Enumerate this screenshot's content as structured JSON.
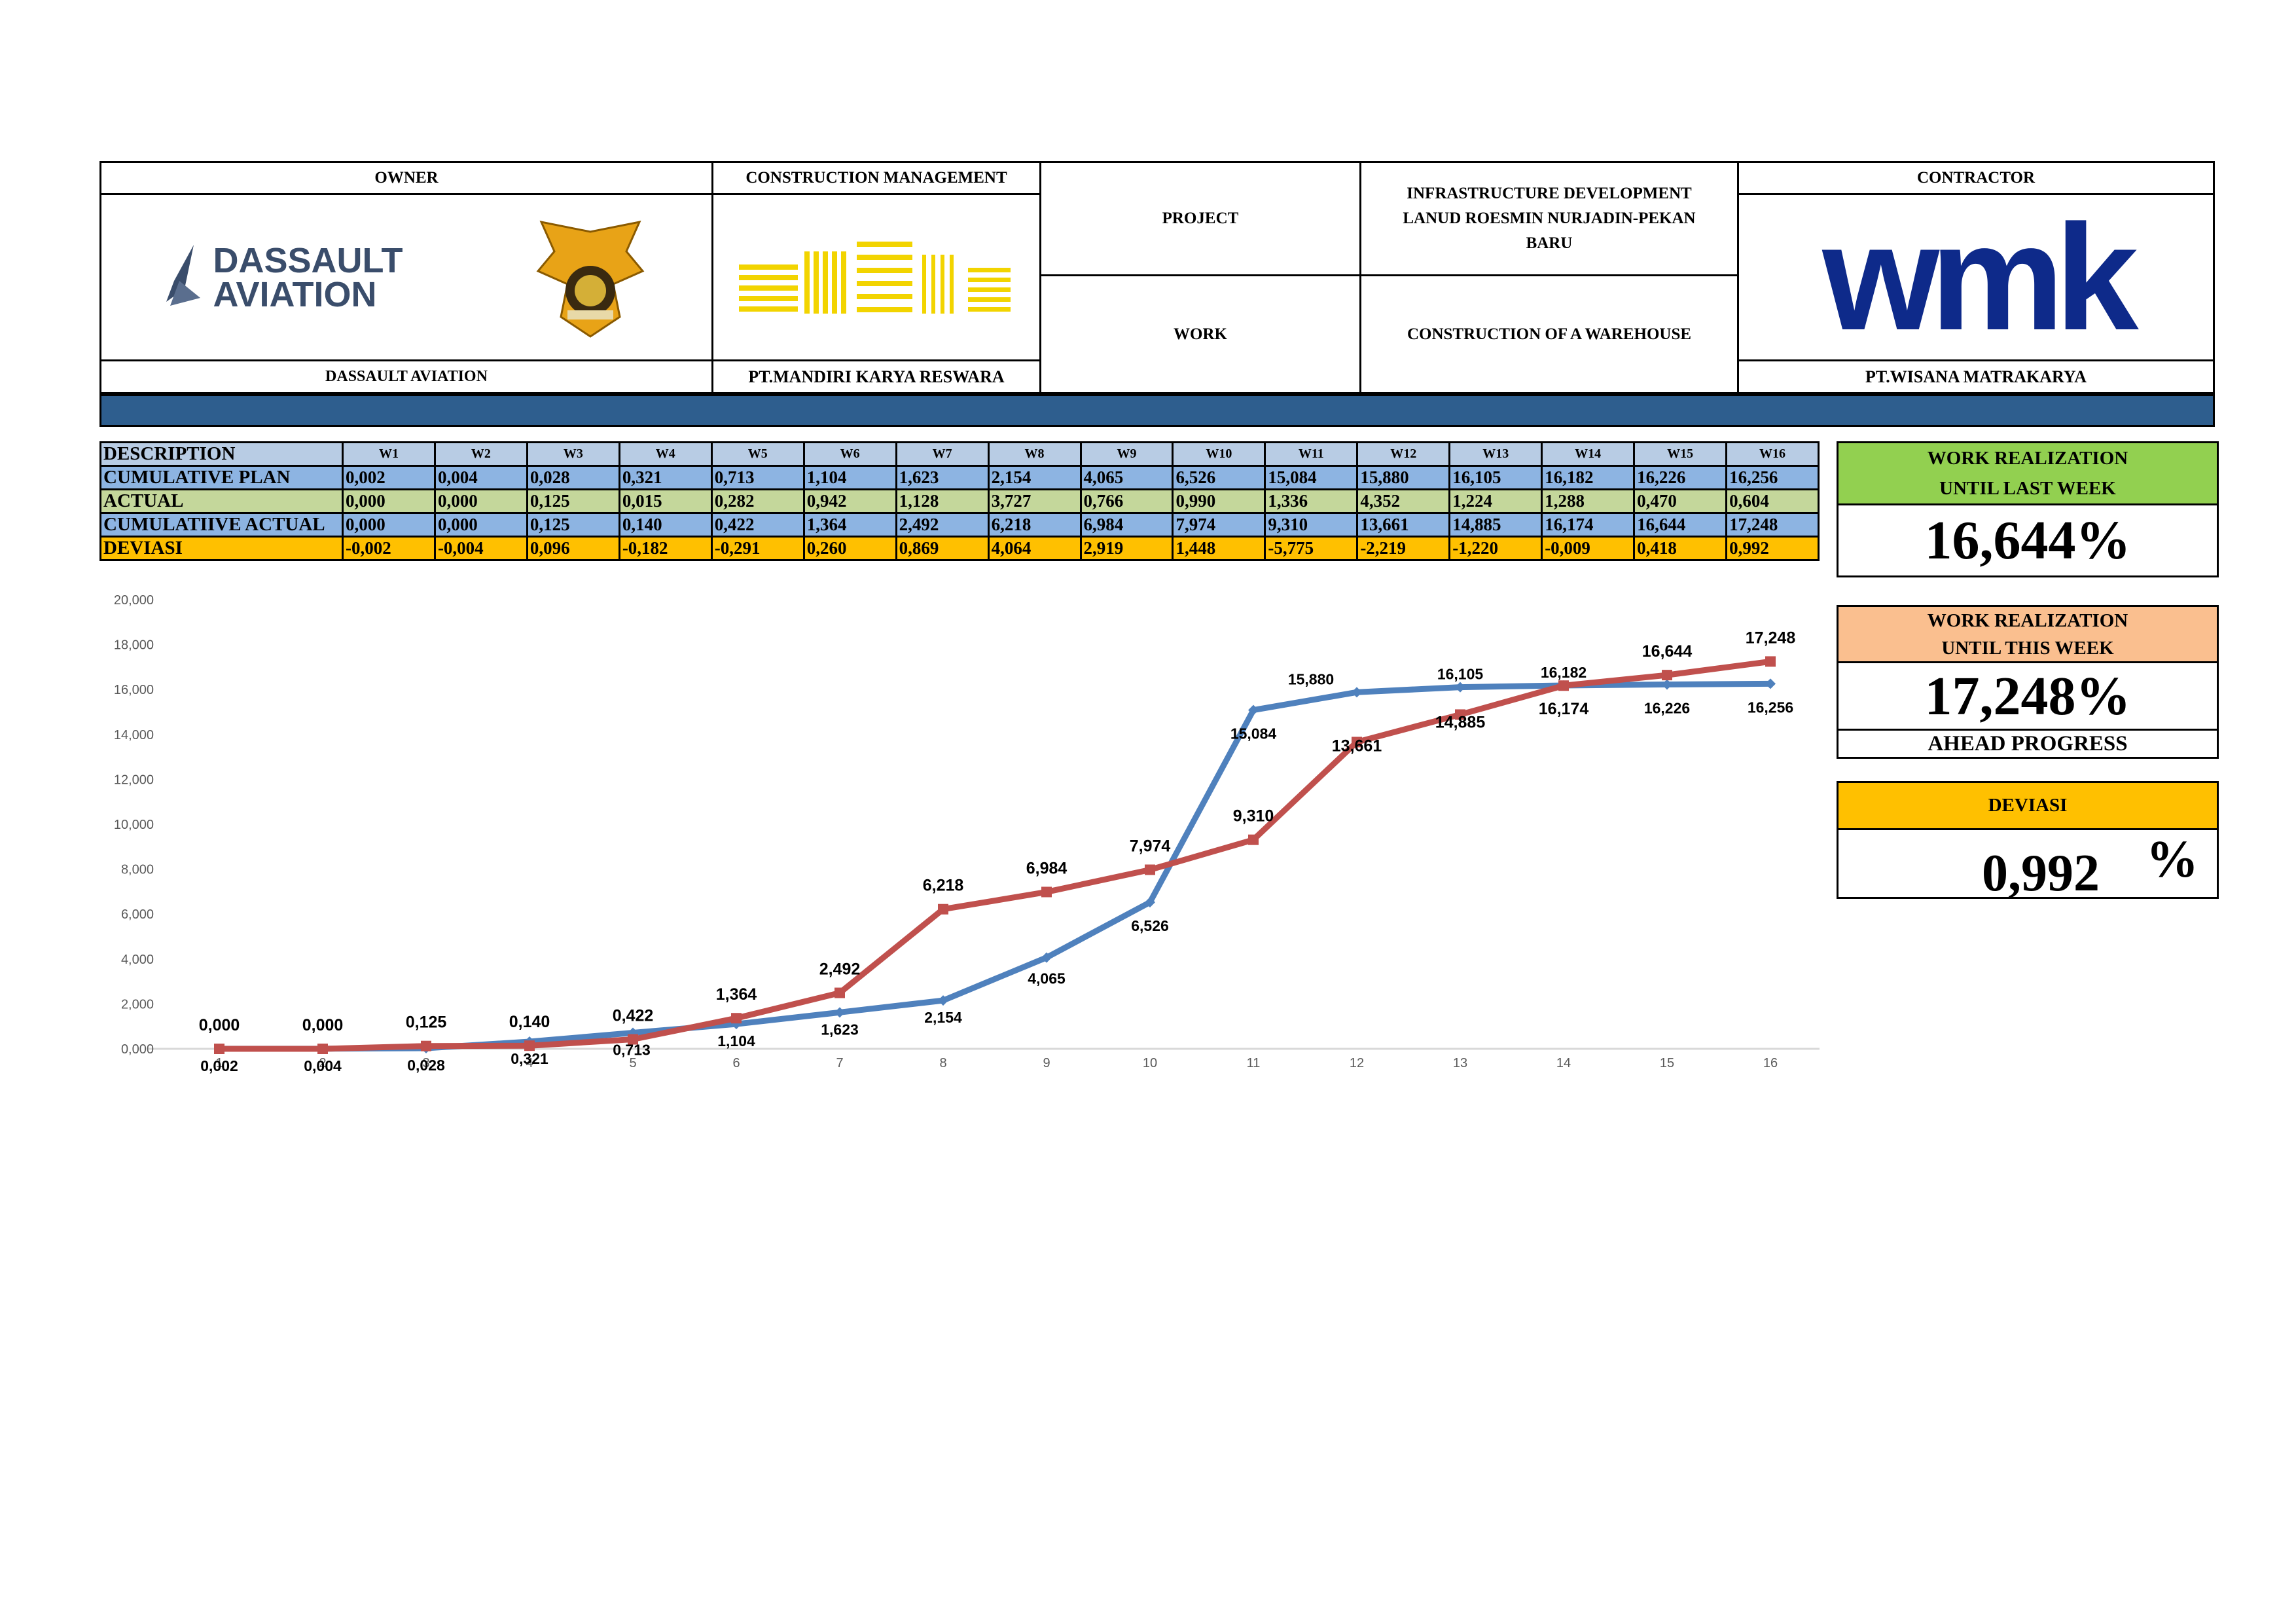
{
  "header": {
    "owner_title": "OWNER",
    "owner_logo_text": "DASSAULT AVIATION",
    "owner_name": "DASSAULT AVIATION",
    "cm_title": "CONSTRUCTION MANAGEMENT",
    "cm_name": "PT.MANDIRI KARYA RESWARA",
    "project_label": "PROJECT",
    "project_value": "INFRASTRUCTURE DEVELOPMENT LANUD ROESMIN NURJADIN-PEKAN BARU",
    "work_label": "WORK",
    "work_value": "CONSTRUCTION OF A WAREHOUSE",
    "contractor_title": "CONTRACTOR",
    "contractor_logo_text": "wmk",
    "contractor_name": "PT.WISANA MATRAKARYA"
  },
  "colors": {
    "band": "#2E5E8E",
    "plan_row": "#8DB4E2",
    "actual_row": "#C4D79B",
    "deviasi_row": "#FFC000",
    "header_row": "#B8CCE4",
    "green_box": "#92D050",
    "orange_box": "#FABF8F",
    "plan_line": "#4F81BD",
    "actual_line": "#C0504D"
  },
  "table": {
    "desc_label": "DESCRIPTION",
    "weeks": [
      "W1",
      "W2",
      "W3",
      "W4",
      "W5",
      "W6",
      "W7",
      "W8",
      "W9",
      "W10",
      "W11",
      "W12",
      "W13",
      "W14",
      "W15",
      "W16"
    ],
    "rows": [
      {
        "label": "CUMULATIVE PLAN",
        "values": [
          "0,002",
          "0,004",
          "0,028",
          "0,321",
          "0,713",
          "1,104",
          "1,623",
          "2,154",
          "4,065",
          "6,526",
          "15,084",
          "15,880",
          "16,105",
          "16,182",
          "16,226",
          "16,256"
        ]
      },
      {
        "label": "ACTUAL",
        "values": [
          "0,000",
          "0,000",
          "0,125",
          "0,015",
          "0,282",
          "0,942",
          "1,128",
          "3,727",
          "0,766",
          "0,990",
          "1,336",
          "4,352",
          "1,224",
          "1,288",
          "0,470",
          "0,604"
        ]
      },
      {
        "label": "CUMULATIIVE ACTUAL",
        "values": [
          "0,000",
          "0,000",
          "0,125",
          "0,140",
          "0,422",
          "1,364",
          "2,492",
          "6,218",
          "6,984",
          "7,974",
          "9,310",
          "13,661",
          "14,885",
          "16,174",
          "16,644",
          "17,248"
        ]
      },
      {
        "label": "DEVIASI",
        "values": [
          "-0,002",
          "-0,004",
          "0,096",
          "-0,182",
          "-0,291",
          "0,260",
          "0,869",
          "4,064",
          "2,919",
          "1,448",
          "-5,775",
          "-2,219",
          "-1,220",
          "-0,009",
          "0,418",
          "0,992"
        ]
      }
    ]
  },
  "summary": {
    "last_week_title_1": "WORK REALIZATION",
    "last_week_title_2": "UNTIL LAST WEEK",
    "last_week_value": "16,644%",
    "this_week_title_1": "WORK REALIZATION",
    "this_week_title_2": "UNTIL THIS WEEK",
    "this_week_value": "17,248%",
    "status": "AHEAD PROGRESS",
    "deviasi_title": "DEVIASI",
    "deviasi_value": "0,992",
    "deviasi_unit": "%"
  },
  "chart_data": {
    "type": "line",
    "title": "",
    "xlabel": "",
    "ylabel": "",
    "x": [
      1,
      2,
      3,
      4,
      5,
      6,
      7,
      8,
      9,
      10,
      11,
      12,
      13,
      14,
      15,
      16
    ],
    "ylim": [
      0,
      20
    ],
    "yticks": [
      "0,000",
      "2,000",
      "4,000",
      "6,000",
      "8,000",
      "10,000",
      "12,000",
      "14,000",
      "16,000",
      "18,000",
      "20,000"
    ],
    "grid": false,
    "legend": "none",
    "series": [
      {
        "values": [
          0.002,
          0.004,
          0.028,
          0.321,
          0.713,
          1.104,
          1.623,
          2.154,
          4.065,
          6.526,
          15.084,
          15.88,
          16.105,
          16.182,
          16.226,
          16.256
        ],
        "labels": [
          "0,002",
          "0,004",
          "0,028",
          "0,321",
          "0,713",
          "1,104",
          "1,623",
          "2,154",
          "4,065",
          "6,526",
          "15,084",
          "15,880",
          "16,105",
          "16,182",
          "16,226",
          "16,256"
        ],
        "color": "#4F81BD"
      },
      {
        "values": [
          0.0,
          0.0,
          0.125,
          0.14,
          0.422,
          1.364,
          2.492,
          6.218,
          6.984,
          7.974,
          9.31,
          13.661,
          14.885,
          16.174,
          16.644,
          17.248
        ],
        "labels": [
          "0,000",
          "0,000",
          "0,125",
          "0,140",
          "0,422",
          "1,364",
          "2,492",
          "6,218",
          "6,984",
          "7,974",
          "9,310",
          "13,661",
          "14,885",
          "16,174",
          "16,644",
          "17,248"
        ],
        "color": "#C0504D"
      }
    ]
  }
}
